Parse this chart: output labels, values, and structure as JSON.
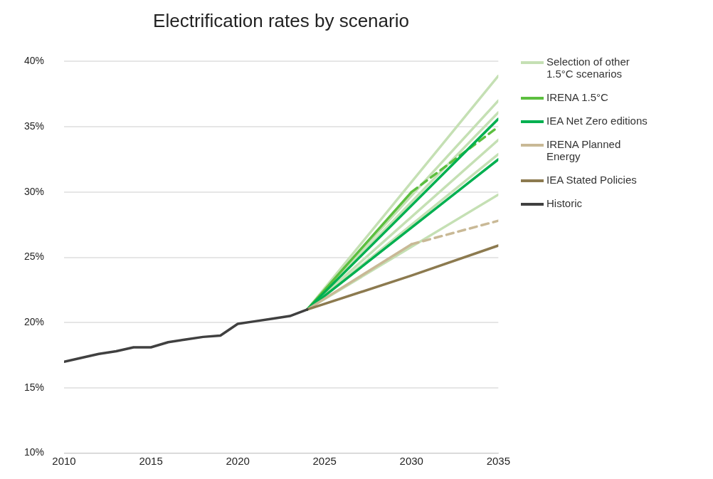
{
  "chart_data": {
    "type": "line",
    "title": "Electrification rates by scenario",
    "xlim": [
      2010,
      2035
    ],
    "xticks": [
      2010,
      2015,
      2020,
      2025,
      2030,
      2035
    ],
    "ylim": [
      10,
      40
    ],
    "yticks": [
      {
        "value": 10,
        "label": "10%"
      },
      {
        "value": 15,
        "label": "15%"
      },
      {
        "value": 20,
        "label": "20%"
      },
      {
        "value": 25,
        "label": "25%"
      },
      {
        "value": 30,
        "label": "30%"
      },
      {
        "value": 35,
        "label": "35%"
      },
      {
        "value": 40,
        "label": "40%"
      }
    ],
    "grid": "y",
    "legend": "right",
    "marker": "none",
    "line_style": "solid",
    "series": [
      {
        "name": "Selection of other 1.5°C scenarios",
        "color": "#c5e0b4",
        "x": [
          2024,
          2035
        ],
        "values": [
          21.0,
          38.9
        ]
      },
      {
        "color": "#c5e0b4",
        "x": [
          2024,
          2035
        ],
        "values": [
          21.0,
          37.0
        ]
      },
      {
        "color": "#c5e0b4",
        "x": [
          2024,
          2035
        ],
        "values": [
          21.0,
          36.1
        ]
      },
      {
        "color": "#c5e0b4",
        "x": [
          2024,
          2035
        ],
        "values": [
          21.0,
          34.0
        ]
      },
      {
        "color": "#c5e0b4",
        "x": [
          2024,
          2035
        ],
        "values": [
          21.0,
          32.9
        ]
      },
      {
        "color": "#c5e0b4",
        "x": [
          2024,
          2035
        ],
        "values": [
          21.0,
          29.8
        ]
      },
      {
        "name": "IRENA 1.5°C",
        "color": "#5cbf3f",
        "x": [
          2024,
          2030
        ],
        "values": [
          21.0,
          30.0
        ]
      },
      {
        "color": "#5cbf3f",
        "x": [
          2030,
          2035
        ],
        "values": [
          30.0,
          35.0
        ],
        "line_style": "dashed"
      },
      {
        "name": "IEA Net Zero editions",
        "color": "#00b050",
        "x": [
          2024,
          2035
        ],
        "values": [
          21.0,
          35.6
        ]
      },
      {
        "color": "#00b050",
        "x": [
          2024,
          2035
        ],
        "values": [
          21.0,
          32.5
        ]
      },
      {
        "name": "IRENA Planned Energy",
        "color": "#c9b996",
        "x": [
          2024,
          2030
        ],
        "values": [
          21.0,
          26.0
        ]
      },
      {
        "color": "#c9b996",
        "x": [
          2030,
          2035
        ],
        "values": [
          26.0,
          27.8
        ],
        "line_style": "dashed"
      },
      {
        "name": "IEA Stated Policies",
        "color": "#8c7a4f",
        "x": [
          2024,
          2030,
          2035
        ],
        "values": [
          21.0,
          23.6,
          25.9
        ]
      },
      {
        "name": "Historic",
        "color": "#404040",
        "x": [
          2010,
          2011,
          2012,
          2013,
          2014,
          2015,
          2016,
          2017,
          2018,
          2019,
          2020,
          2021,
          2022,
          2023,
          2024
        ],
        "values": [
          17.0,
          17.3,
          17.6,
          17.8,
          18.1,
          18.1,
          18.5,
          18.7,
          18.9,
          19.0,
          19.9,
          20.1,
          20.3,
          20.5,
          21.0
        ]
      }
    ]
  }
}
